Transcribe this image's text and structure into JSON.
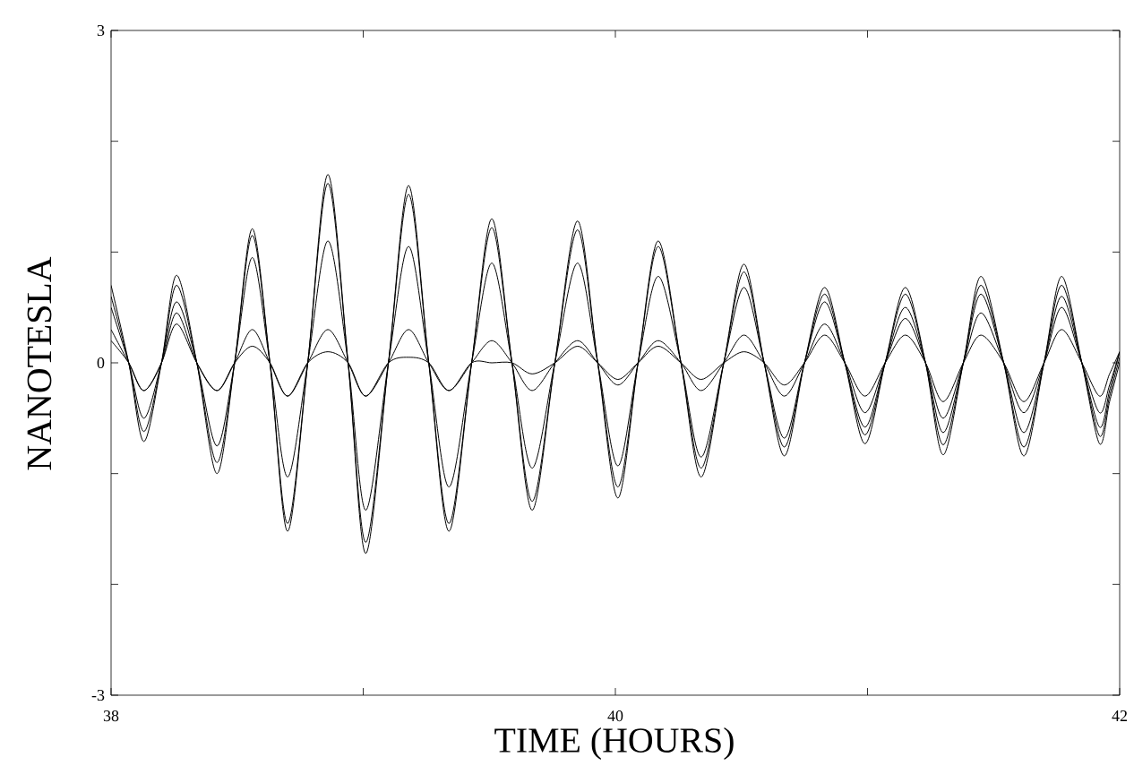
{
  "chart_data": {
    "type": "line",
    "xlabel": "TIME (HOURS)",
    "ylabel": "NANOTESLA",
    "x": [
      38.0,
      38.07,
      38.13,
      38.2,
      38.26,
      38.34,
      38.42,
      38.49,
      38.56,
      38.63,
      38.7,
      38.78,
      38.86,
      38.94,
      39.01,
      39.1,
      39.18,
      39.26,
      39.34,
      39.43,
      39.51,
      39.59,
      39.67,
      39.76,
      39.85,
      39.93,
      40.01,
      40.09,
      40.17,
      40.26,
      40.34,
      40.43,
      40.51,
      40.59,
      40.67,
      40.75,
      40.83,
      40.91,
      40.99,
      41.07,
      41.15,
      41.23,
      41.3,
      41.38,
      41.45,
      41.54,
      41.62,
      41.7,
      41.77,
      41.85,
      41.92,
      41.96,
      42.0
    ],
    "series": [
      {
        "color": "#000000",
        "values": [
          0.7,
          0.0,
          -0.71,
          0.0,
          0.79,
          0.0,
          -1.0,
          0.0,
          1.21,
          0.0,
          -1.52,
          0.0,
          1.7,
          0.0,
          -1.72,
          0.0,
          1.6,
          0.0,
          -1.52,
          0.0,
          1.3,
          0.0,
          -1.33,
          0.0,
          1.28,
          0.0,
          -1.22,
          0.0,
          1.1,
          0.0,
          -1.03,
          0.0,
          0.89,
          0.0,
          -0.84,
          0.0,
          0.68,
          0.0,
          -0.73,
          0.0,
          0.68,
          0.0,
          -0.83,
          0.0,
          0.78,
          0.0,
          -0.84,
          0.0,
          0.78,
          0.0,
          -0.73,
          -0.35,
          0.0
        ]
      },
      {
        "color": "#000000",
        "values": [
          0.6,
          0.0,
          -0.62,
          0.0,
          0.7,
          0.0,
          -0.9,
          0.0,
          1.15,
          0.0,
          -1.45,
          0.0,
          1.62,
          0.0,
          -1.62,
          0.0,
          1.52,
          0.0,
          -1.45,
          0.0,
          1.22,
          0.0,
          -1.25,
          0.0,
          1.2,
          0.0,
          -1.12,
          0.0,
          1.05,
          0.0,
          -0.95,
          0.0,
          0.82,
          0.0,
          -0.76,
          0.0,
          0.62,
          0.0,
          -0.65,
          0.0,
          0.62,
          0.0,
          -0.74,
          0.0,
          0.7,
          0.0,
          -0.76,
          0.0,
          0.7,
          0.0,
          -0.66,
          -0.3,
          0.05
        ]
      },
      {
        "color": "#000000",
        "values": [
          0.5,
          0.0,
          -0.5,
          0.0,
          0.55,
          0.0,
          -0.75,
          0.0,
          0.95,
          0.0,
          -1.03,
          0.0,
          1.1,
          0.0,
          -1.33,
          0.0,
          1.05,
          0.0,
          -1.12,
          0.0,
          0.9,
          0.0,
          -0.95,
          0.0,
          0.9,
          0.0,
          -0.93,
          0.0,
          0.78,
          0.0,
          -0.85,
          0.0,
          0.68,
          0.0,
          -0.68,
          0.0,
          0.55,
          0.0,
          -0.58,
          0.0,
          0.5,
          0.0,
          -0.63,
          0.0,
          0.62,
          0.0,
          -0.63,
          0.0,
          0.6,
          0.0,
          -0.58,
          -0.25,
          0.1
        ]
      },
      {
        "color": "#000000",
        "values": [
          0.3,
          0.0,
          -0.25,
          0.0,
          0.45,
          0.0,
          -0.25,
          0.0,
          0.3,
          0.0,
          -0.3,
          0.0,
          0.3,
          0.0,
          -0.3,
          0.0,
          0.3,
          0.0,
          -0.25,
          0.0,
          0.2,
          0.0,
          -0.25,
          0.0,
          0.2,
          0.0,
          -0.2,
          0.0,
          0.2,
          0.0,
          -0.25,
          0.0,
          0.25,
          0.0,
          -0.3,
          0.0,
          0.35,
          0.0,
          -0.45,
          0.0,
          0.4,
          0.0,
          -0.5,
          0.0,
          0.45,
          0.0,
          -0.45,
          0.0,
          0.5,
          0.0,
          -0.45,
          -0.2,
          0.1
        ]
      },
      {
        "color": "#000000",
        "values": [
          0.2,
          0.0,
          -0.25,
          0.0,
          0.35,
          0.0,
          -0.25,
          0.0,
          0.15,
          0.0,
          -0.3,
          0.0,
          0.1,
          0.0,
          -0.3,
          0.0,
          0.05,
          0.0,
          -0.25,
          0.0,
          0.0,
          0.0,
          -0.1,
          0.0,
          0.15,
          0.0,
          -0.15,
          0.0,
          0.15,
          0.0,
          -0.15,
          0.0,
          0.1,
          0.0,
          -0.2,
          0.0,
          0.25,
          0.0,
          -0.3,
          0.0,
          0.25,
          0.0,
          -0.35,
          0.0,
          0.25,
          0.0,
          -0.35,
          0.0,
          0.3,
          0.0,
          -0.3,
          -0.1,
          0.1
        ]
      }
    ],
    "xlim": [
      38,
      42
    ],
    "ylim": [
      -3,
      3
    ],
    "xticks": [
      38,
      {
        "value": 39,
        "label": null
      },
      40,
      {
        "value": 41,
        "label": null
      },
      42
    ],
    "yticks": [
      -3,
      {
        "value": -2,
        "label": null
      },
      {
        "value": -1,
        "label": null
      },
      0,
      {
        "value": 1,
        "label": null
      },
      {
        "value": 2,
        "label": null
      },
      3
    ]
  }
}
